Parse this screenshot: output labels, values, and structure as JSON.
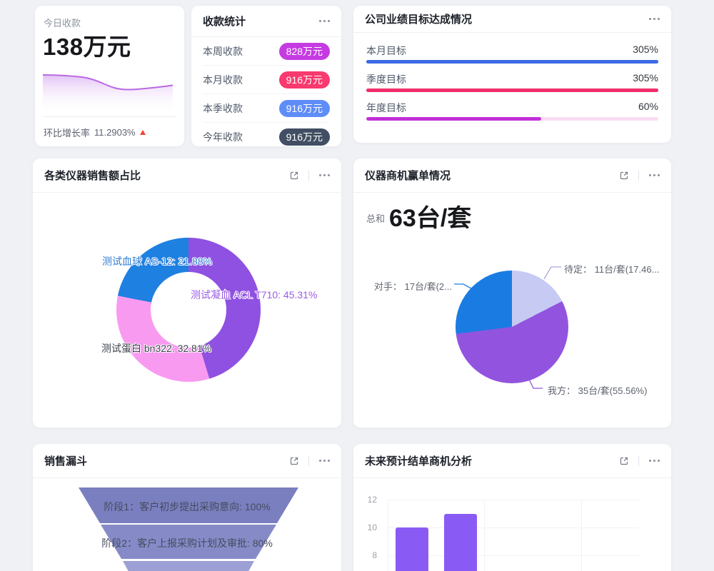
{
  "colors": {
    "page_bg": "#eff1f5",
    "card_bg": "#ffffff",
    "title_text": "#1d2129",
    "muted_text": "#8d939e",
    "body_text": "#4e5969",
    "trend_up_red": "#ee4437",
    "icon_gray": "#767c89"
  },
  "cards": {
    "today": {
      "title": "今日收款",
      "value": "138万元",
      "footer_label": "环比增长率",
      "footer_value": "11.2903%",
      "spark_line_color": "#b968e3",
      "spark_fill_color": "#e7cdf6"
    },
    "stats": {
      "title": "收款统计",
      "rows": [
        {
          "label": "本周收款",
          "value": "828万元",
          "color": "#c53be2"
        },
        {
          "label": "本月收款",
          "value": "916万元",
          "color": "#f83a6e"
        },
        {
          "label": "本季收款",
          "value": "916万元",
          "color": "#5f8df8"
        },
        {
          "label": "今年收款",
          "value": "916万元",
          "color": "#414e63"
        }
      ]
    },
    "targets": {
      "title": "公司业绩目标达成情况",
      "rows": [
        {
          "label": "本月目标",
          "value": "305%",
          "pct": 100,
          "color": "#3d6be5",
          "track": "#3d6be5"
        },
        {
          "label": "季度目标",
          "value": "305%",
          "pct": 100,
          "color": "#f12e6d",
          "track": "#f12e6d"
        },
        {
          "label": "年度目标",
          "value": "60%",
          "pct": 60,
          "color": "#c32fd7",
          "track": "#f8ddf3"
        }
      ]
    },
    "donut": {
      "title": "各类仪器销售额占比",
      "slices": [
        {
          "label": "测试凝血 ACL T710",
          "value": 45.31,
          "color": "#8f51e1",
          "label_text": "测试凝血 ACL T710: 45.31%",
          "label_color": "#9a5ce4"
        },
        {
          "label": "测试蛋白 bn322",
          "value": 32.81,
          "color": "#f99af1",
          "label_text": "测试蛋白 bn322: 32.81%",
          "label_color": "#3a3f4a"
        },
        {
          "label": "测试血球 AS-12",
          "value": 21.88,
          "color": "#1e80e1",
          "label_text": "测试血球 AS-12: 21.88%",
          "label_color": "#2e7cd6"
        }
      ]
    },
    "pie": {
      "title": "仪器商机赢单情况",
      "total_label": "总和",
      "total_value": "63台/套",
      "slices": [
        {
          "name": "待定",
          "value": 17.46,
          "color": "#c7caf2"
        },
        {
          "name": "我方",
          "value": 55.56,
          "color": "#9254df"
        },
        {
          "name": "对手",
          "value": 26.98,
          "color": "#1a7ce2"
        }
      ],
      "labels": [
        {
          "text": "待定： 11台/套(17.46...",
          "line_color": "#a9a4e4"
        },
        {
          "text": "对手： 17台/套(2...",
          "line_color": "#1a7ce2"
        },
        {
          "text": "我方： 35台/套(55.56%)",
          "line_color": "#9254df"
        }
      ]
    },
    "funnel": {
      "title": "销售漏斗",
      "stages": [
        {
          "text": "阶段1：客户初步提出采购意向: 100%",
          "color": "#7a7fc0"
        },
        {
          "text": "阶段2：客户上报采购计划及审批: 80%",
          "color": "#868bc8"
        },
        {
          "text": "",
          "color": "#9ca0d4"
        }
      ]
    },
    "bars": {
      "title": "未来预计结单商机分析",
      "y_ticks": [
        "12",
        "10",
        "8"
      ],
      "values": [
        10,
        11
      ],
      "color": "#8a5bf4"
    }
  },
  "chart_data": [
    {
      "type": "area",
      "title": "今日收款 趋势",
      "x": [
        0,
        1,
        2,
        3,
        4,
        5,
        6,
        7,
        8
      ],
      "values": [
        1.0,
        0.98,
        0.95,
        0.82,
        0.65,
        0.58,
        0.6,
        0.62,
        0.65
      ],
      "note_axes": "no axes shown, normalized trend",
      "line_color": "#b968e3"
    },
    {
      "type": "pie",
      "subtype": "donut",
      "title": "各类仪器销售额占比",
      "labels": [
        "测试凝血 ACL T710",
        "测试蛋白 bn322",
        "测试血球 AS-12"
      ],
      "values": [
        45.31,
        32.81,
        21.88
      ],
      "unit": "%",
      "colors": [
        "#8f51e1",
        "#f99af1",
        "#1e80e1"
      ]
    },
    {
      "type": "pie",
      "title": "仪器商机赢单情况",
      "labels": [
        "待定",
        "我方",
        "对手"
      ],
      "values": [
        11,
        35,
        17
      ],
      "pcts": [
        17.46,
        55.56,
        26.98
      ],
      "total": "63台/套",
      "unit": "台/套",
      "colors": [
        "#c7caf2",
        "#9254df",
        "#1a7ce2"
      ]
    },
    {
      "type": "bar",
      "subtype": "funnel",
      "title": "销售漏斗",
      "categories": [
        "阶段1: 客户初步提出采购意向",
        "阶段2: 客户上报采购计划及审批"
      ],
      "values": [
        100,
        80
      ],
      "unit": "%"
    },
    {
      "type": "bar",
      "title": "未来预计结单商机分析",
      "values": [
        10,
        11
      ],
      "ylim_visible": [
        8,
        12
      ],
      "grid": true,
      "color": "#8a5bf4"
    },
    {
      "type": "bar",
      "subtype": "progress",
      "title": "公司业绩目标达成情况",
      "categories": [
        "本月目标",
        "季度目标",
        "年度目标"
      ],
      "values": [
        305,
        305,
        60
      ],
      "unit": "%"
    },
    {
      "type": "table",
      "title": "收款统计",
      "rows": [
        [
          "本周收款",
          "828万元"
        ],
        [
          "本月收款",
          "916万元"
        ],
        [
          "本季收款",
          "916万元"
        ],
        [
          "今年收款",
          "916万元"
        ]
      ]
    }
  ]
}
